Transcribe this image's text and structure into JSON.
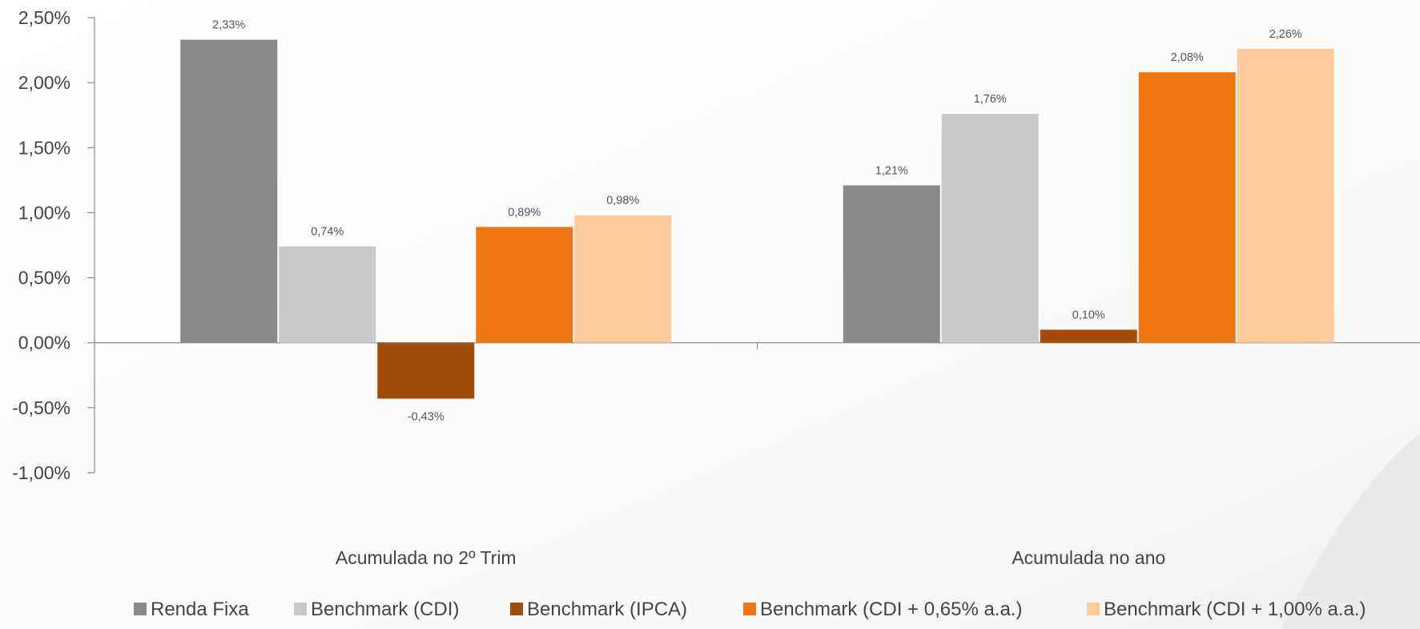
{
  "chart_data": {
    "type": "bar",
    "title": "",
    "xlabel": "",
    "ylabel": "",
    "categories": [
      "Acumulada no 2º Trim",
      "Acumulada no ano"
    ],
    "series": [
      {
        "name": "Renda Fixa",
        "color": "#898989",
        "values": [
          2.33,
          1.21
        ],
        "labels": [
          "2,33%",
          "1,21%"
        ]
      },
      {
        "name": "Benchmark (CDI)",
        "color": "#c9c9c9",
        "values": [
          0.74,
          1.76
        ],
        "labels": [
          "0,74%",
          "1,76%"
        ]
      },
      {
        "name": "Benchmark (IPCA)",
        "color": "#a24d0a",
        "values": [
          -0.43,
          0.1
        ],
        "labels": [
          "-0,43%",
          "0,10%"
        ]
      },
      {
        "name": "Benchmark (CDI + 0,65% a.a.)",
        "color": "#f07614",
        "values": [
          0.89,
          2.08
        ],
        "labels": [
          "0,89%",
          "2,08%"
        ]
      },
      {
        "name": "Benchmark (CDI + 1,00% a.a.)",
        "color": "#fecb9c",
        "values": [
          0.98,
          2.26
        ],
        "labels": [
          "0,98%",
          "2,26%"
        ]
      }
    ],
    "ylim": [
      -1.0,
      2.5
    ],
    "yticks": [
      2.5,
      2.0,
      1.5,
      1.0,
      0.5,
      0.0,
      -0.5,
      -1.0
    ],
    "ytick_labels": [
      "2,50%",
      "2,00%",
      "1,50%",
      "1,00%",
      "0,50%",
      "0,00%",
      "-0,50%",
      "-1,00%"
    ],
    "grid": false,
    "legend_position": "bottom"
  }
}
